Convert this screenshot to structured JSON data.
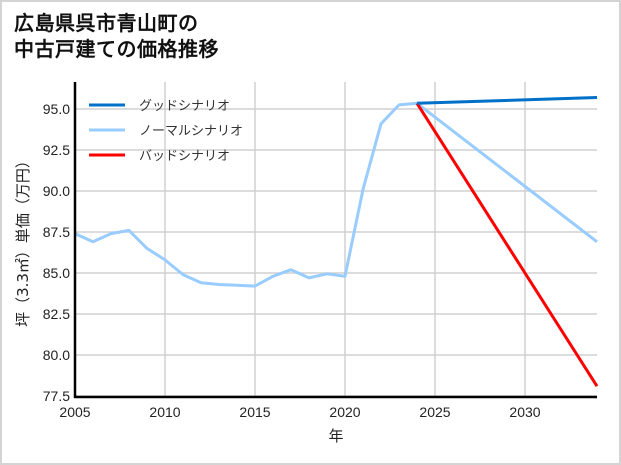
{
  "chart_data": {
    "type": "line",
    "title": "広島県呉市青山町の\n中古戸建ての価格推移",
    "title_lines": [
      "広島県呉市青山町の",
      "中古戸建ての価格推移"
    ],
    "xlabel": "年",
    "ylabel": "坪（3.3㎡）単価（万円）",
    "xlim": [
      2005,
      2034
    ],
    "ylim": [
      77.5,
      96.5
    ],
    "xticks": [
      2005,
      2010,
      2015,
      2020,
      2025,
      2030
    ],
    "yticks": [
      77.5,
      80.0,
      82.5,
      85.0,
      87.5,
      90.0,
      92.5,
      95.0
    ],
    "ytick_labels": [
      "77.5",
      "80.0",
      "82.5",
      "85.0",
      "87.5",
      "90.0",
      "92.5",
      "95.0"
    ],
    "grid": true,
    "legend_position": "upper left",
    "series": [
      {
        "name": "グッドシナリオ",
        "color": "#0070c8",
        "x": [
          2024,
          2034
        ],
        "values": [
          95.35,
          95.7
        ]
      },
      {
        "name": "ノーマルシナリオ",
        "color": "#99ccff",
        "x": [
          2005,
          2006,
          2007,
          2008,
          2009,
          2010,
          2011,
          2012,
          2013,
          2014,
          2015,
          2016,
          2017,
          2018,
          2019,
          2020,
          2021,
          2022,
          2023,
          2024,
          2034
        ],
        "values": [
          87.4,
          86.9,
          87.4,
          87.6,
          86.5,
          85.8,
          84.9,
          84.4,
          84.3,
          84.25,
          84.2,
          84.8,
          85.2,
          84.7,
          84.95,
          84.8,
          90.1,
          94.1,
          95.25,
          95.35,
          86.9
        ]
      },
      {
        "name": "バッドシナリオ",
        "color": "#ff0000",
        "x": [
          2024,
          2034
        ],
        "values": [
          95.35,
          78.1
        ]
      }
    ]
  }
}
